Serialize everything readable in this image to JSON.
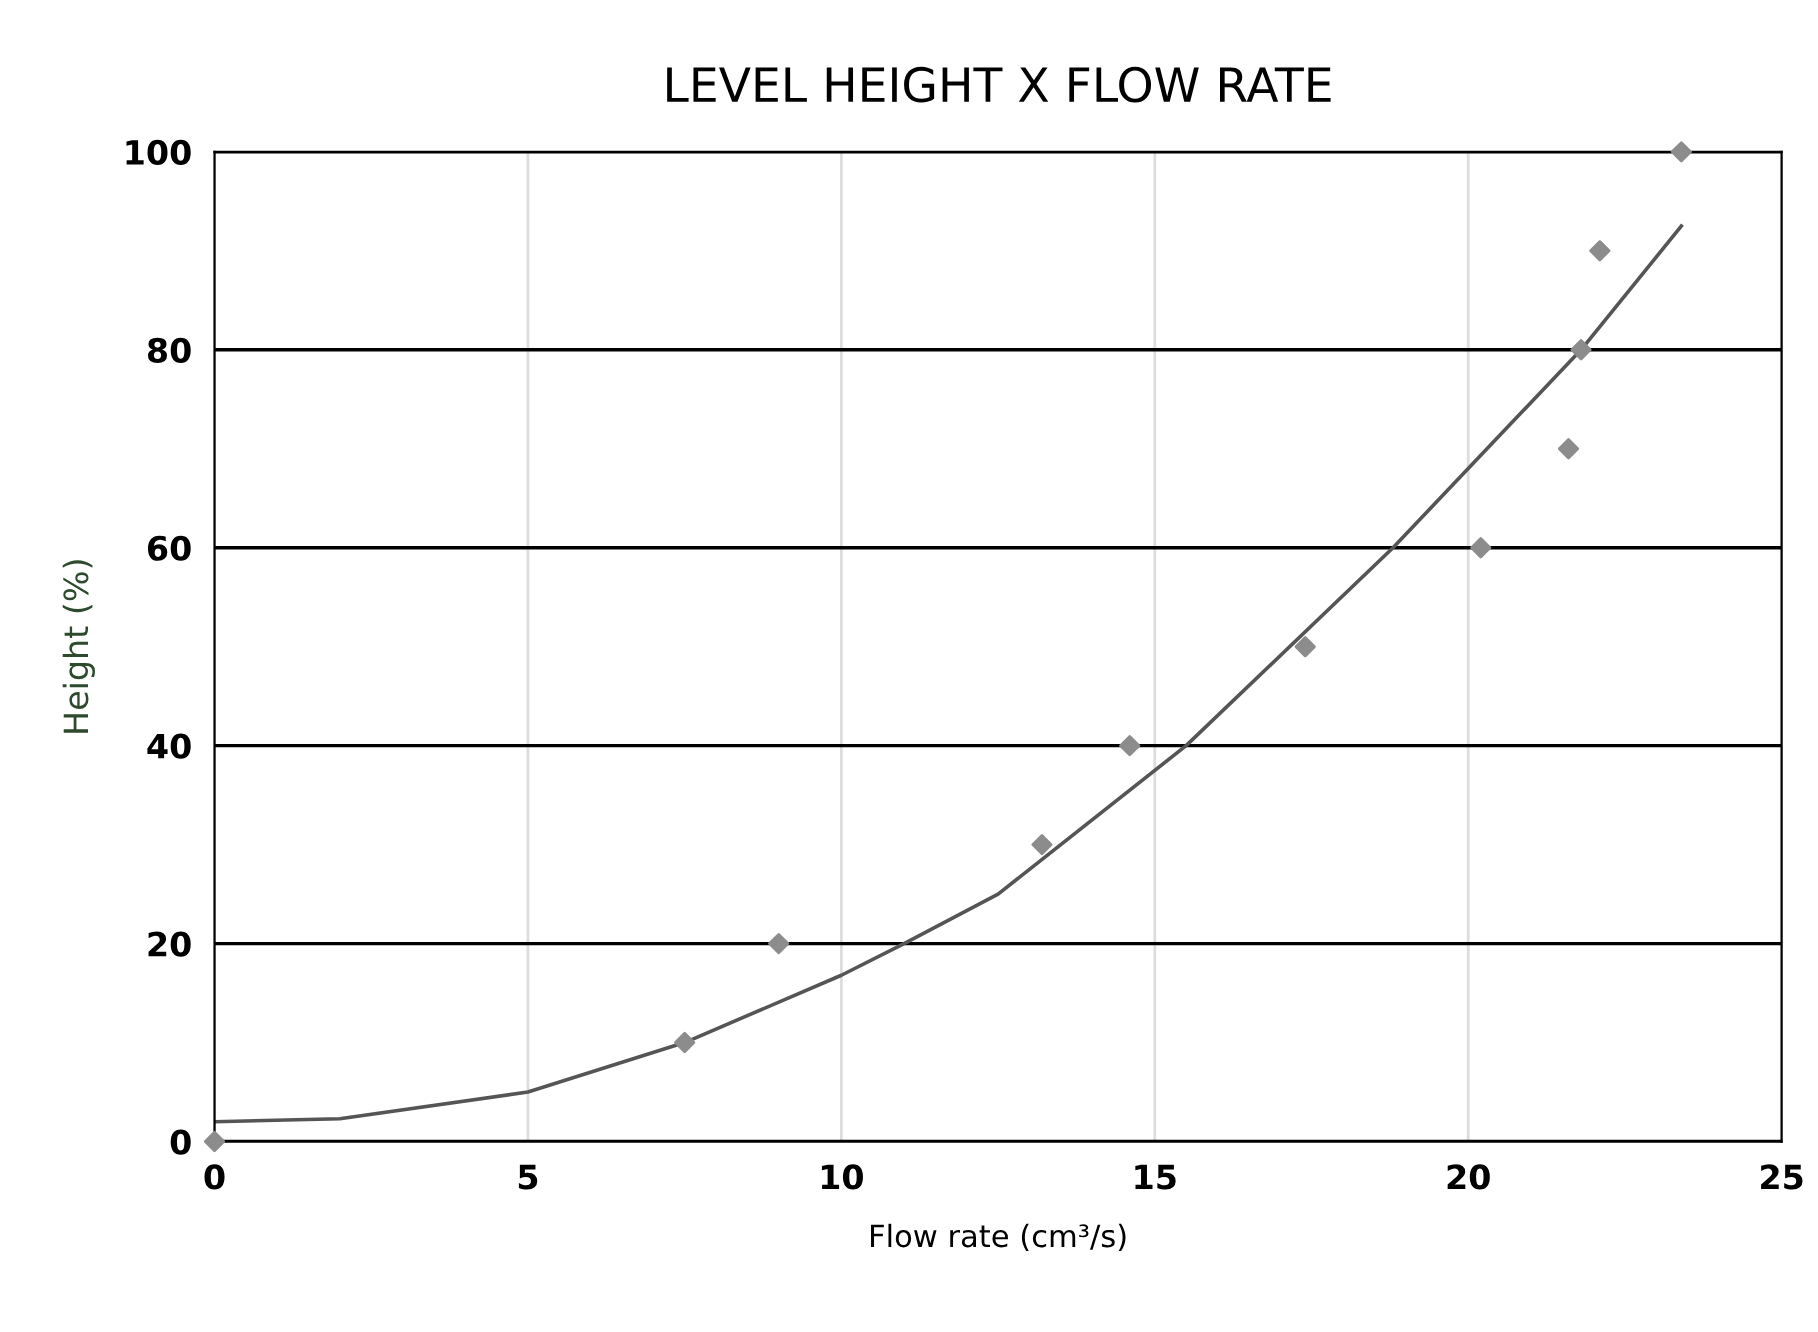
{
  "chart_data": {
    "type": "scatter",
    "title": "LEVEL HEIGHT X FLOW RATE",
    "xlabel": "Flow rate (cm³/s)",
    "ylabel": "Height (%)",
    "series": [
      {
        "color": "#8c8c8c",
        "marker": "diamond",
        "x": [
          0,
          7.5,
          9.0,
          13.2,
          14.6,
          17.4,
          20.2,
          21.6,
          21.8,
          22.1,
          23.4
        ],
        "values": [
          0,
          10,
          20,
          30,
          40,
          50,
          60,
          70,
          80,
          90,
          100
        ]
      },
      {
        "type": "line",
        "color": "#555555",
        "marker": "none",
        "x": [
          0,
          2,
          5,
          7.5,
          10,
          11,
          12.5,
          15.5,
          18.8,
          21.8,
          23.4
        ],
        "values": [
          2,
          2.3,
          5,
          10,
          16.8,
          20,
          25,
          40,
          60,
          80,
          92.5
        ]
      }
    ],
    "xlim": [
      0,
      25
    ],
    "xticks": [
      0,
      5,
      10,
      15,
      20,
      25
    ],
    "ylim": [
      0,
      100
    ],
    "yticks": [
      0,
      20,
      40,
      60,
      80,
      100
    ],
    "grid": true
  }
}
